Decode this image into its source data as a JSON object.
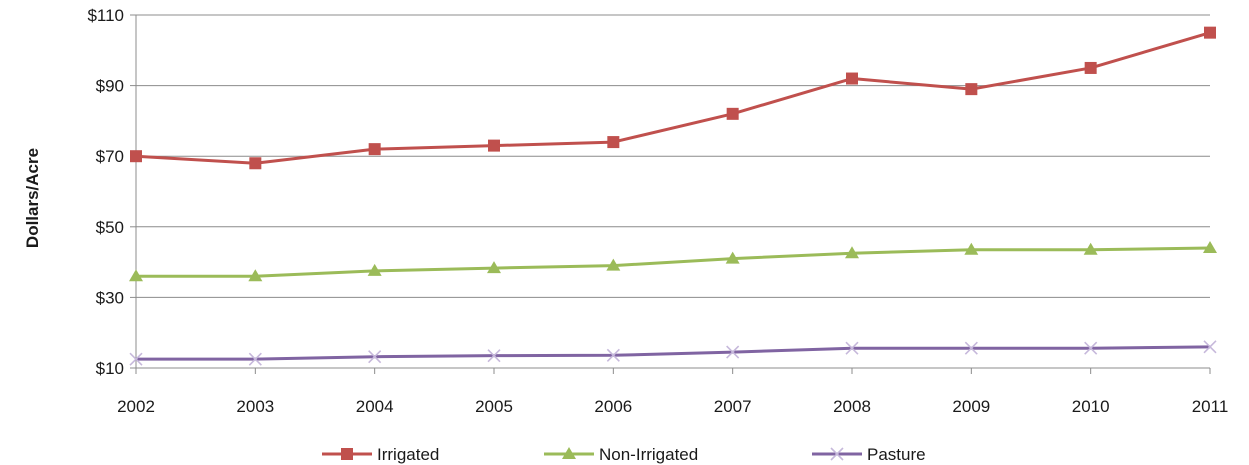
{
  "chart_data": {
    "type": "line",
    "title": "",
    "xlabel": "",
    "ylabel": "Dollars/Acre",
    "categories": [
      "2002",
      "2003",
      "2004",
      "2005",
      "2006",
      "2007",
      "2008",
      "2009",
      "2010",
      "2011"
    ],
    "yticks": [
      "$10",
      "$30",
      "$50",
      "$70",
      "$90",
      "$110"
    ],
    "ylim": [
      10,
      110
    ],
    "grid": true,
    "legend_position": "bottom",
    "series": [
      {
        "name": "Irrigated",
        "color": "#c0504d",
        "marker": "square",
        "values": [
          70,
          68,
          72,
          73,
          74,
          82,
          92,
          89,
          95,
          105
        ]
      },
      {
        "name": "Non-Irrigated",
        "color": "#9bbb59",
        "marker": "triangle",
        "values": [
          36,
          36,
          37.5,
          38.3,
          39,
          41,
          42.5,
          43.5,
          43.5,
          44
        ]
      },
      {
        "name": "Pasture",
        "color": "#8064a2",
        "marker": "x",
        "values": [
          12.5,
          12.5,
          13.2,
          13.5,
          13.6,
          14.5,
          15.6,
          15.6,
          15.6,
          16
        ]
      }
    ]
  }
}
